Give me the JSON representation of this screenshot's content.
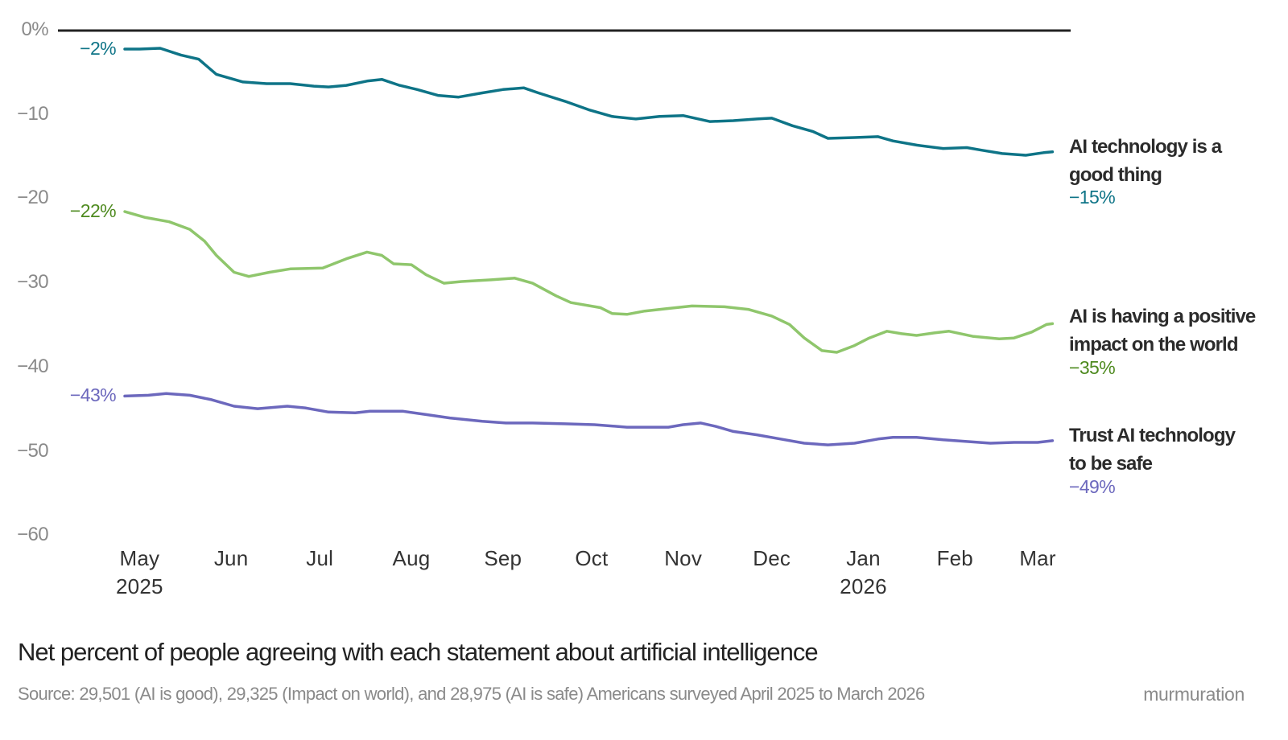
{
  "chart_data": {
    "type": "line",
    "title": "Net percent of people agreeing with each statement about artificial intelligence",
    "source": "Source: 29,501 (AI is good), 29,325 (Impact on world), and 28,975 (AI is safe) Americans surveyed April 2025 to March 2026",
    "brand": "murmuration",
    "x_unit": "days since Apr 26, 2025",
    "xlim": [
      0,
      314
    ],
    "ylim": [
      -60,
      0
    ],
    "grid": false,
    "y_ticks": [
      {
        "value": 0,
        "label": "0%"
      },
      {
        "value": -10,
        "label": "−10"
      },
      {
        "value": -20,
        "label": "−20"
      },
      {
        "value": -30,
        "label": "−30"
      },
      {
        "value": -40,
        "label": "−40"
      },
      {
        "value": -50,
        "label": "−50"
      },
      {
        "value": -60,
        "label": "−60"
      }
    ],
    "x_ticks": [
      {
        "day": 5,
        "label": "May",
        "year": "2025"
      },
      {
        "day": 36,
        "label": "Jun"
      },
      {
        "day": 66,
        "label": "Jul"
      },
      {
        "day": 97,
        "label": "Aug"
      },
      {
        "day": 128,
        "label": "Sep"
      },
      {
        "day": 158,
        "label": "Oct"
      },
      {
        "day": 189,
        "label": "Nov"
      },
      {
        "day": 219,
        "label": "Dec"
      },
      {
        "day": 250,
        "label": "Jan",
        "year": "2026"
      },
      {
        "day": 281,
        "label": "Feb"
      },
      {
        "day": 309,
        "label": "Mar"
      }
    ],
    "series": [
      {
        "name_lines": [
          "AI technology is a",
          "good thing"
        ],
        "start_label": "−2%",
        "end_label": "−15%",
        "color": "#0e7487",
        "label_color": "#0e7487",
        "points": [
          [
            0,
            -2.2
          ],
          [
            5,
            -2.2
          ],
          [
            12,
            -2.1
          ],
          [
            19,
            -2.9
          ],
          [
            25,
            -3.4
          ],
          [
            31,
            -5.2
          ],
          [
            40,
            -6.1
          ],
          [
            48,
            -6.3
          ],
          [
            56,
            -6.3
          ],
          [
            64,
            -6.6
          ],
          [
            69,
            -6.7
          ],
          [
            75,
            -6.5
          ],
          [
            82,
            -6.0
          ],
          [
            87,
            -5.8
          ],
          [
            93,
            -6.5
          ],
          [
            99,
            -7.0
          ],
          [
            106,
            -7.7
          ],
          [
            113,
            -7.9
          ],
          [
            121,
            -7.4
          ],
          [
            128,
            -7.0
          ],
          [
            135,
            -6.8
          ],
          [
            140,
            -7.4
          ],
          [
            149,
            -8.4
          ],
          [
            157,
            -9.4
          ],
          [
            165,
            -10.2
          ],
          [
            173,
            -10.5
          ],
          [
            181,
            -10.2
          ],
          [
            189,
            -10.1
          ],
          [
            198,
            -10.8
          ],
          [
            206,
            -10.7
          ],
          [
            214,
            -10.5
          ],
          [
            219,
            -10.4
          ],
          [
            226,
            -11.3
          ],
          [
            233,
            -12.0
          ],
          [
            238,
            -12.8
          ],
          [
            247,
            -12.7
          ],
          [
            255,
            -12.6
          ],
          [
            260,
            -13.1
          ],
          [
            268,
            -13.6
          ],
          [
            277,
            -14.0
          ],
          [
            285,
            -13.9
          ],
          [
            290,
            -14.2
          ],
          [
            297,
            -14.6
          ],
          [
            305,
            -14.8
          ],
          [
            311,
            -14.5
          ],
          [
            314,
            -14.4
          ]
        ]
      },
      {
        "name_lines": [
          "AI is having a positive",
          "impact on the world"
        ],
        "start_label": "−22%",
        "end_label": "−35%",
        "color": "#8fc66c",
        "label_color": "#4e8a1f",
        "points": [
          [
            0,
            -21.5
          ],
          [
            7,
            -22.2
          ],
          [
            15,
            -22.7
          ],
          [
            22,
            -23.6
          ],
          [
            27,
            -25.0
          ],
          [
            31,
            -26.7
          ],
          [
            37,
            -28.7
          ],
          [
            42,
            -29.2
          ],
          [
            49,
            -28.7
          ],
          [
            56,
            -28.3
          ],
          [
            67,
            -28.2
          ],
          [
            75,
            -27.1
          ],
          [
            82,
            -26.3
          ],
          [
            87,
            -26.7
          ],
          [
            91,
            -27.7
          ],
          [
            97,
            -27.8
          ],
          [
            102,
            -29.0
          ],
          [
            108,
            -30.0
          ],
          [
            114,
            -29.8
          ],
          [
            124,
            -29.6
          ],
          [
            132,
            -29.4
          ],
          [
            138,
            -30.0
          ],
          [
            146,
            -31.5
          ],
          [
            151,
            -32.3
          ],
          [
            161,
            -32.9
          ],
          [
            165,
            -33.6
          ],
          [
            170,
            -33.7
          ],
          [
            176,
            -33.3
          ],
          [
            184,
            -33.0
          ],
          [
            192,
            -32.7
          ],
          [
            203,
            -32.8
          ],
          [
            211,
            -33.1
          ],
          [
            219,
            -33.9
          ],
          [
            225,
            -34.9
          ],
          [
            230,
            -36.5
          ],
          [
            236,
            -38.0
          ],
          [
            241,
            -38.2
          ],
          [
            247,
            -37.4
          ],
          [
            252,
            -36.5
          ],
          [
            258,
            -35.7
          ],
          [
            263,
            -36.0
          ],
          [
            268,
            -36.2
          ],
          [
            274,
            -35.9
          ],
          [
            279,
            -35.7
          ],
          [
            287,
            -36.3
          ],
          [
            296,
            -36.6
          ],
          [
            301,
            -36.5
          ],
          [
            307,
            -35.8
          ],
          [
            312,
            -34.9
          ],
          [
            314,
            -34.8
          ]
        ]
      },
      {
        "name_lines": [
          "Trust AI technology",
          "to be safe"
        ],
        "start_label": "−43%",
        "end_label": "−49%",
        "color": "#6c68bd",
        "label_color": "#6c68bd",
        "points": [
          [
            0,
            -43.4
          ],
          [
            8,
            -43.3
          ],
          [
            14,
            -43.1
          ],
          [
            22,
            -43.3
          ],
          [
            29,
            -43.8
          ],
          [
            37,
            -44.6
          ],
          [
            45,
            -44.9
          ],
          [
            55,
            -44.6
          ],
          [
            61,
            -44.8
          ],
          [
            69,
            -45.3
          ],
          [
            78,
            -45.4
          ],
          [
            83,
            -45.2
          ],
          [
            94,
            -45.2
          ],
          [
            102,
            -45.6
          ],
          [
            110,
            -46.0
          ],
          [
            121,
            -46.4
          ],
          [
            129,
            -46.6
          ],
          [
            138,
            -46.6
          ],
          [
            149,
            -46.7
          ],
          [
            159,
            -46.8
          ],
          [
            170,
            -47.1
          ],
          [
            184,
            -47.1
          ],
          [
            189,
            -46.8
          ],
          [
            195,
            -46.6
          ],
          [
            200,
            -47.0
          ],
          [
            206,
            -47.6
          ],
          [
            214,
            -48.0
          ],
          [
            222,
            -48.5
          ],
          [
            230,
            -49.0
          ],
          [
            238,
            -49.2
          ],
          [
            247,
            -49.0
          ],
          [
            255,
            -48.5
          ],
          [
            260,
            -48.3
          ],
          [
            268,
            -48.3
          ],
          [
            277,
            -48.6
          ],
          [
            285,
            -48.8
          ],
          [
            293,
            -49.0
          ],
          [
            301,
            -48.9
          ],
          [
            309,
            -48.9
          ],
          [
            314,
            -48.7
          ]
        ]
      }
    ]
  }
}
